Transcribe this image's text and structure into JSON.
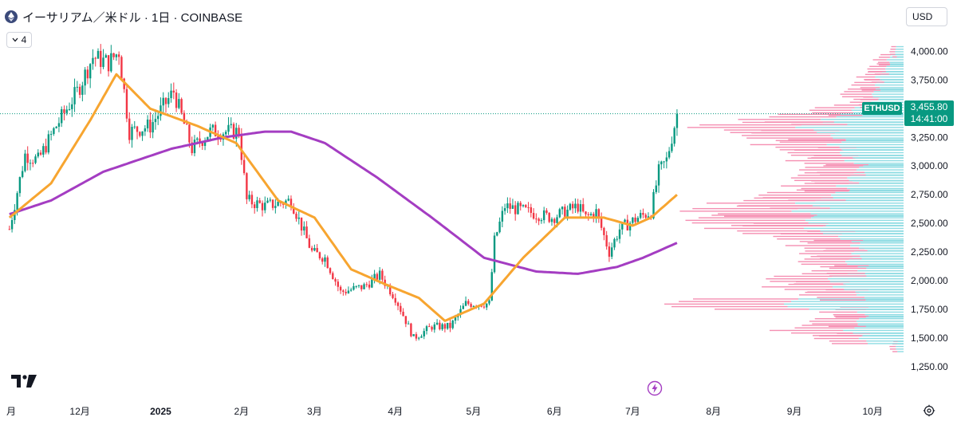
{
  "header": {
    "title": "イーサリアム／米ドル · 1日 · COINBASE",
    "indicator_count": "4",
    "currency": "USD"
  },
  "price_tag": {
    "symbol": "ETHUSD",
    "price": "3,455.80",
    "countdown": "14:41:00"
  },
  "icons": {
    "eth": "ethereum-icon",
    "chevron": "chevron-down-icon",
    "logo": "tradingview-logo",
    "flash": "lightning-icon",
    "settings": "settings-icon"
  },
  "colors": {
    "up": "#089981",
    "down": "#f23645",
    "ma_fast": "#f7a530",
    "ma_slow": "#a43dc2",
    "vp_up": "#8fdce3",
    "vp_down": "#f58fb2"
  },
  "chart_data": {
    "type": "candlestick",
    "y_axis": {
      "ticks": [
        1250,
        1500,
        1750,
        2000,
        2250,
        2500,
        2750,
        3000,
        3250,
        3500,
        3750,
        4000
      ],
      "tick_labels": [
        "1,250.00",
        "1,500.00",
        "1,750.00",
        "2,000.00",
        "2,250.00",
        "2,500.00",
        "2,750.00",
        "3,000.00",
        "3,250.00",
        "3,500.00",
        "3,750.00",
        "4,000.00"
      ],
      "range": [
        1180,
        4100
      ]
    },
    "x_axis": {
      "labels": [
        "月",
        "12月",
        "2025",
        "2月",
        "3月",
        "4月",
        "5月",
        "6月",
        "7月",
        "8月",
        "9月",
        "10月"
      ],
      "bold": [
        false,
        false,
        true,
        false,
        false,
        false,
        false,
        false,
        false,
        false,
        false,
        false
      ]
    },
    "price_anchors": [
      [
        "2024-11-04",
        2450
      ],
      [
        "2024-11-10",
        3100
      ],
      [
        "2024-11-15",
        3050
      ],
      [
        "2024-11-22",
        3350
      ],
      [
        "2024-11-30",
        3650
      ],
      [
        "2024-12-06",
        3950
      ],
      [
        "2024-12-12",
        3900
      ],
      [
        "2024-12-16",
        4000
      ],
      [
        "2024-12-20",
        3300
      ],
      [
        "2024-12-28",
        3350
      ],
      [
        "2025-01-06",
        3650
      ],
      [
        "2025-01-13",
        3150
      ],
      [
        "2025-01-20",
        3300
      ],
      [
        "2025-01-31",
        3300
      ],
      [
        "2025-02-03",
        2700
      ],
      [
        "2025-02-10",
        2650
      ],
      [
        "2025-02-20",
        2700
      ],
      [
        "2025-02-28",
        2250
      ],
      [
        "2025-03-05",
        2200
      ],
      [
        "2025-03-11",
        1900
      ],
      [
        "2025-03-20",
        1950
      ],
      [
        "2025-03-26",
        2050
      ],
      [
        "2025-04-01",
        1850
      ],
      [
        "2025-04-08",
        1500
      ],
      [
        "2025-04-15",
        1600
      ],
      [
        "2025-04-22",
        1600
      ],
      [
        "2025-04-28",
        1800
      ],
      [
        "2025-05-07",
        1800
      ],
      [
        "2025-05-09",
        2350
      ],
      [
        "2025-05-13",
        2650
      ],
      [
        "2025-05-22",
        2600
      ],
      [
        "2025-05-31",
        2550
      ],
      [
        "2025-06-10",
        2650
      ],
      [
        "2025-06-13",
        2550
      ],
      [
        "2025-06-17",
        2600
      ],
      [
        "2025-06-22",
        2250
      ],
      [
        "2025-06-26",
        2450
      ],
      [
        "2025-07-03",
        2550
      ],
      [
        "2025-07-08",
        2600
      ],
      [
        "2025-07-11",
        2950
      ],
      [
        "2025-07-14",
        3050
      ],
      [
        "2025-07-18",
        3455.8
      ]
    ],
    "ma_fast_points": [
      [
        "2024-11-04",
        2550
      ],
      [
        "2024-11-20",
        2850
      ],
      [
        "2024-12-05",
        3400
      ],
      [
        "2024-12-15",
        3800
      ],
      [
        "2024-12-28",
        3500
      ],
      [
        "2025-01-15",
        3350
      ],
      [
        "2025-01-30",
        3200
      ],
      [
        "2025-02-15",
        2700
      ],
      [
        "2025-03-01",
        2550
      ],
      [
        "2025-03-15",
        2100
      ],
      [
        "2025-03-28",
        1970
      ],
      [
        "2025-04-10",
        1850
      ],
      [
        "2025-04-20",
        1650
      ],
      [
        "2025-05-05",
        1800
      ],
      [
        "2025-05-20",
        2200
      ],
      [
        "2025-06-05",
        2550
      ],
      [
        "2025-06-20",
        2550
      ],
      [
        "2025-07-01",
        2480
      ],
      [
        "2025-07-08",
        2550
      ],
      [
        "2025-07-13",
        2650
      ],
      [
        "2025-07-18",
        2750
      ]
    ],
    "ma_slow_points": [
      [
        "2024-11-04",
        2580
      ],
      [
        "2024-11-20",
        2700
      ],
      [
        "2024-12-10",
        2950
      ],
      [
        "2025-01-05",
        3150
      ],
      [
        "2025-01-25",
        3250
      ],
      [
        "2025-02-10",
        3300
      ],
      [
        "2025-02-20",
        3300
      ],
      [
        "2025-03-05",
        3200
      ],
      [
        "2025-03-25",
        2900
      ],
      [
        "2025-04-15",
        2550
      ],
      [
        "2025-05-05",
        2200
      ],
      [
        "2025-05-25",
        2080
      ],
      [
        "2025-06-10",
        2060
      ],
      [
        "2025-06-25",
        2120
      ],
      [
        "2025-07-05",
        2200
      ],
      [
        "2025-07-18",
        2330
      ]
    ],
    "volume_profile": {
      "levels": [
        1420,
        1490,
        1560,
        1640,
        1720,
        1790,
        1870,
        1940,
        2010,
        2080,
        2160,
        2230,
        2300,
        2380,
        2450,
        2520,
        2600,
        2670,
        2740,
        2820,
        2890,
        2960,
        3040,
        3110,
        3180,
        3260,
        3330,
        3400,
        3480,
        3550,
        3620,
        3700,
        3770,
        3840,
        3920,
        3990
      ],
      "total": [
        20,
        120,
        170,
        130,
        110,
        340,
        140,
        180,
        190,
        120,
        150,
        140,
        150,
        180,
        260,
        310,
        300,
        250,
        200,
        160,
        160,
        140,
        150,
        160,
        200,
        230,
        290,
        210,
        130,
        70,
        90,
        70,
        60,
        50,
        40,
        20
      ],
      "up_share": [
        0.55,
        0.5,
        0.45,
        0.5,
        0.55,
        0.5,
        0.45,
        0.5,
        0.55,
        0.5,
        0.55,
        0.5,
        0.45,
        0.5,
        0.5,
        0.45,
        0.5,
        0.55,
        0.5,
        0.55,
        0.5,
        0.45,
        0.5,
        0.55,
        0.5,
        0.45,
        0.5,
        0.5,
        0.55,
        0.6,
        0.5,
        0.55,
        0.6,
        0.5,
        0.55,
        0.6
      ]
    },
    "current_price": 3455.8
  }
}
